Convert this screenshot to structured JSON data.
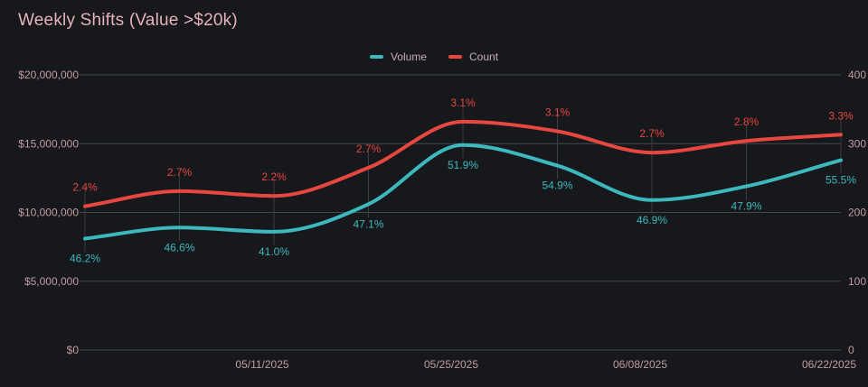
{
  "title": "Weekly Shifts (Value >$20k)",
  "legend": [
    {
      "label": "Volume",
      "color": "#3db8be"
    },
    {
      "label": "Count",
      "color": "#e8473f"
    }
  ],
  "colors": {
    "bg": "#16181c",
    "title": "#e6b3ba",
    "legendText": "#c7b0b5",
    "axisText": "#c19ba3",
    "gridline": "#44474c",
    "pointTick": "#3a3d43",
    "volume": "#3db8be",
    "count": "#e8473f"
  },
  "chart_data": {
    "type": "line",
    "title": "Weekly Shifts (Value >$20k)",
    "x_point_count": 9,
    "x_tick_labels": [
      {
        "point_index": 2,
        "label": "05/11/2025"
      },
      {
        "point_index": 4,
        "label": "05/25/2025"
      },
      {
        "point_index": 6,
        "label": "06/08/2025"
      },
      {
        "point_index": 8,
        "label": "06/22/2025"
      }
    ],
    "left_axis": {
      "tick_labels": [
        "$20,000,000",
        "$15,000,000",
        "$10,000,000",
        "$5,000,000",
        "$0"
      ],
      "min": 0,
      "max": 20000000
    },
    "right_axis": {
      "tick_labels": [
        "400",
        "300",
        "200",
        "100",
        "0"
      ],
      "min": 0,
      "max": 400
    },
    "grid": true,
    "legend_position": "top-center",
    "series": [
      {
        "name": "Volume",
        "axis": "left",
        "color": "#3db8be",
        "values": [
          8100000,
          8900000,
          8600000,
          10600000,
          14900000,
          13400000,
          10900000,
          11900000,
          13800000
        ],
        "point_labels": [
          "46.2%",
          "46.6%",
          "41.0%",
          "47.1%",
          "51.9%",
          "54.9%",
          "46.9%",
          "47.9%",
          "55.5%"
        ],
        "label_side": "below"
      },
      {
        "name": "Count",
        "axis": "right",
        "color": "#e8473f",
        "values": [
          209,
          231,
          224,
          265,
          332,
          318,
          287,
          304,
          313
        ],
        "point_labels": [
          "2.4%",
          "2.7%",
          "2.2%",
          "2.7%",
          "3.1%",
          "3.1%",
          "2.7%",
          "2.8%",
          "3.3%"
        ],
        "label_side": "above"
      }
    ]
  }
}
